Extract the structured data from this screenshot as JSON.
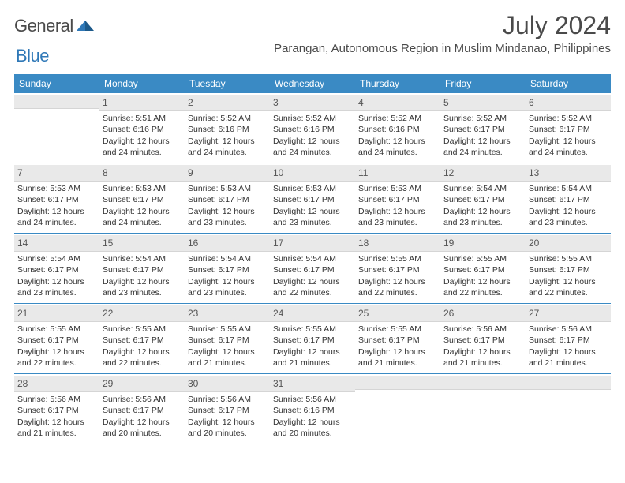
{
  "brand": {
    "name1": "General",
    "name2": "Blue"
  },
  "colors": {
    "header_bg": "#3a8ac4",
    "header_fg": "#ffffff",
    "daynum_bg": "#e9e9e9",
    "border": "#3a8ac4",
    "text": "#333333",
    "title": "#4a4a4a"
  },
  "title": "July 2024",
  "location": "Parangan, Autonomous Region in Muslim Mindanao, Philippines",
  "dayNames": [
    "Sunday",
    "Monday",
    "Tuesday",
    "Wednesday",
    "Thursday",
    "Friday",
    "Saturday"
  ],
  "weeks": [
    [
      {
        "day": "",
        "lines": []
      },
      {
        "day": "1",
        "lines": [
          "Sunrise: 5:51 AM",
          "Sunset: 6:16 PM",
          "Daylight: 12 hours and 24 minutes."
        ]
      },
      {
        "day": "2",
        "lines": [
          "Sunrise: 5:52 AM",
          "Sunset: 6:16 PM",
          "Daylight: 12 hours and 24 minutes."
        ]
      },
      {
        "day": "3",
        "lines": [
          "Sunrise: 5:52 AM",
          "Sunset: 6:16 PM",
          "Daylight: 12 hours and 24 minutes."
        ]
      },
      {
        "day": "4",
        "lines": [
          "Sunrise: 5:52 AM",
          "Sunset: 6:16 PM",
          "Daylight: 12 hours and 24 minutes."
        ]
      },
      {
        "day": "5",
        "lines": [
          "Sunrise: 5:52 AM",
          "Sunset: 6:17 PM",
          "Daylight: 12 hours and 24 minutes."
        ]
      },
      {
        "day": "6",
        "lines": [
          "Sunrise: 5:52 AM",
          "Sunset: 6:17 PM",
          "Daylight: 12 hours and 24 minutes."
        ]
      }
    ],
    [
      {
        "day": "7",
        "lines": [
          "Sunrise: 5:53 AM",
          "Sunset: 6:17 PM",
          "Daylight: 12 hours and 24 minutes."
        ]
      },
      {
        "day": "8",
        "lines": [
          "Sunrise: 5:53 AM",
          "Sunset: 6:17 PM",
          "Daylight: 12 hours and 24 minutes."
        ]
      },
      {
        "day": "9",
        "lines": [
          "Sunrise: 5:53 AM",
          "Sunset: 6:17 PM",
          "Daylight: 12 hours and 23 minutes."
        ]
      },
      {
        "day": "10",
        "lines": [
          "Sunrise: 5:53 AM",
          "Sunset: 6:17 PM",
          "Daylight: 12 hours and 23 minutes."
        ]
      },
      {
        "day": "11",
        "lines": [
          "Sunrise: 5:53 AM",
          "Sunset: 6:17 PM",
          "Daylight: 12 hours and 23 minutes."
        ]
      },
      {
        "day": "12",
        "lines": [
          "Sunrise: 5:54 AM",
          "Sunset: 6:17 PM",
          "Daylight: 12 hours and 23 minutes."
        ]
      },
      {
        "day": "13",
        "lines": [
          "Sunrise: 5:54 AM",
          "Sunset: 6:17 PM",
          "Daylight: 12 hours and 23 minutes."
        ]
      }
    ],
    [
      {
        "day": "14",
        "lines": [
          "Sunrise: 5:54 AM",
          "Sunset: 6:17 PM",
          "Daylight: 12 hours and 23 minutes."
        ]
      },
      {
        "day": "15",
        "lines": [
          "Sunrise: 5:54 AM",
          "Sunset: 6:17 PM",
          "Daylight: 12 hours and 23 minutes."
        ]
      },
      {
        "day": "16",
        "lines": [
          "Sunrise: 5:54 AM",
          "Sunset: 6:17 PM",
          "Daylight: 12 hours and 23 minutes."
        ]
      },
      {
        "day": "17",
        "lines": [
          "Sunrise: 5:54 AM",
          "Sunset: 6:17 PM",
          "Daylight: 12 hours and 22 minutes."
        ]
      },
      {
        "day": "18",
        "lines": [
          "Sunrise: 5:55 AM",
          "Sunset: 6:17 PM",
          "Daylight: 12 hours and 22 minutes."
        ]
      },
      {
        "day": "19",
        "lines": [
          "Sunrise: 5:55 AM",
          "Sunset: 6:17 PM",
          "Daylight: 12 hours and 22 minutes."
        ]
      },
      {
        "day": "20",
        "lines": [
          "Sunrise: 5:55 AM",
          "Sunset: 6:17 PM",
          "Daylight: 12 hours and 22 minutes."
        ]
      }
    ],
    [
      {
        "day": "21",
        "lines": [
          "Sunrise: 5:55 AM",
          "Sunset: 6:17 PM",
          "Daylight: 12 hours and 22 minutes."
        ]
      },
      {
        "day": "22",
        "lines": [
          "Sunrise: 5:55 AM",
          "Sunset: 6:17 PM",
          "Daylight: 12 hours and 22 minutes."
        ]
      },
      {
        "day": "23",
        "lines": [
          "Sunrise: 5:55 AM",
          "Sunset: 6:17 PM",
          "Daylight: 12 hours and 21 minutes."
        ]
      },
      {
        "day": "24",
        "lines": [
          "Sunrise: 5:55 AM",
          "Sunset: 6:17 PM",
          "Daylight: 12 hours and 21 minutes."
        ]
      },
      {
        "day": "25",
        "lines": [
          "Sunrise: 5:55 AM",
          "Sunset: 6:17 PM",
          "Daylight: 12 hours and 21 minutes."
        ]
      },
      {
        "day": "26",
        "lines": [
          "Sunrise: 5:56 AM",
          "Sunset: 6:17 PM",
          "Daylight: 12 hours and 21 minutes."
        ]
      },
      {
        "day": "27",
        "lines": [
          "Sunrise: 5:56 AM",
          "Sunset: 6:17 PM",
          "Daylight: 12 hours and 21 minutes."
        ]
      }
    ],
    [
      {
        "day": "28",
        "lines": [
          "Sunrise: 5:56 AM",
          "Sunset: 6:17 PM",
          "Daylight: 12 hours and 21 minutes."
        ]
      },
      {
        "day": "29",
        "lines": [
          "Sunrise: 5:56 AM",
          "Sunset: 6:17 PM",
          "Daylight: 12 hours and 20 minutes."
        ]
      },
      {
        "day": "30",
        "lines": [
          "Sunrise: 5:56 AM",
          "Sunset: 6:17 PM",
          "Daylight: 12 hours and 20 minutes."
        ]
      },
      {
        "day": "31",
        "lines": [
          "Sunrise: 5:56 AM",
          "Sunset: 6:16 PM",
          "Daylight: 12 hours and 20 minutes."
        ]
      },
      {
        "day": "",
        "lines": []
      },
      {
        "day": "",
        "lines": []
      },
      {
        "day": "",
        "lines": []
      }
    ]
  ]
}
